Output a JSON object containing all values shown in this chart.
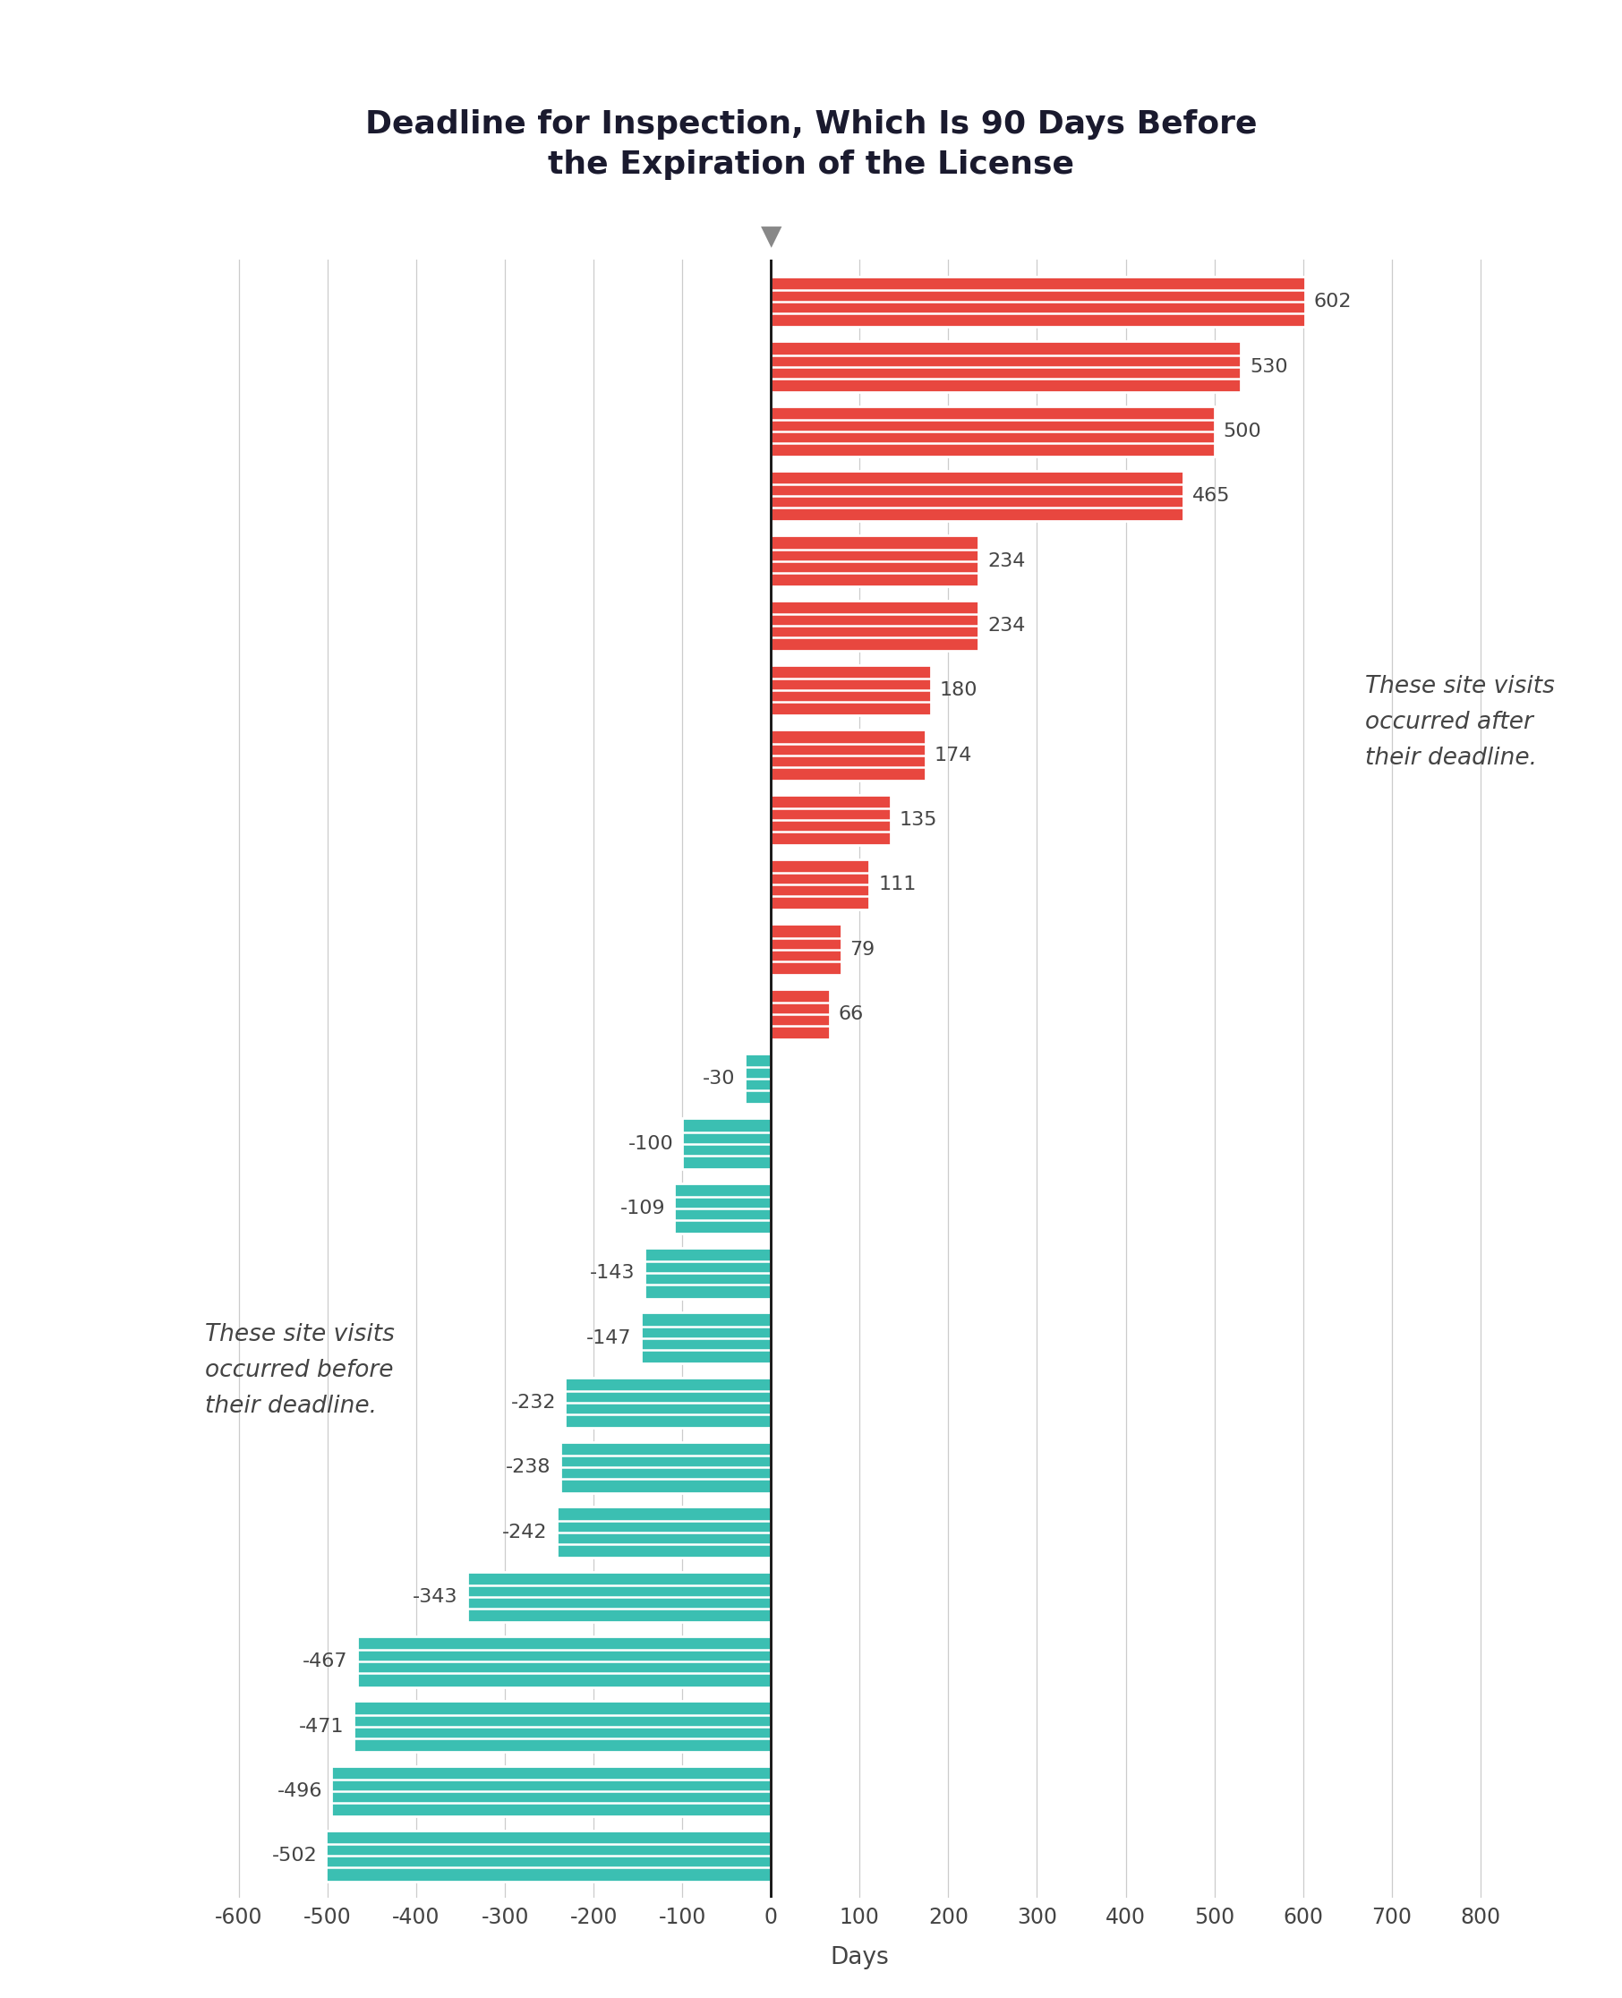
{
  "title": "Deadline for Inspection, Which Is 90 Days Before\nthe Expiration of the License",
  "xlabel": "Days",
  "values": [
    602,
    530,
    500,
    465,
    234,
    234,
    180,
    174,
    135,
    111,
    79,
    66,
    -30,
    -100,
    -109,
    -143,
    -147,
    -232,
    -238,
    -242,
    -343,
    -467,
    -471,
    -496,
    -502
  ],
  "bar_color_positive": "#E8473F",
  "bar_color_negative": "#3BBFB2",
  "xlim": [
    -650,
    850
  ],
  "xticks": [
    -600,
    -500,
    -400,
    -300,
    -200,
    -100,
    0,
    100,
    200,
    300,
    400,
    500,
    600,
    700,
    800
  ],
  "annotation_after": "These site visits\noccurred after\ntheir deadline.",
  "annotation_before": "These site visits\noccurred before\ntheir deadline.",
  "title_color": "#1a1a2e",
  "tick_label_color": "#444444",
  "grid_color": "#cccccc",
  "zero_line_color": "#111111",
  "triangle_color": "#888888",
  "title_fontsize": 26,
  "label_fontsize": 17,
  "bar_label_fontsize": 16,
  "annotation_fontsize": 19
}
